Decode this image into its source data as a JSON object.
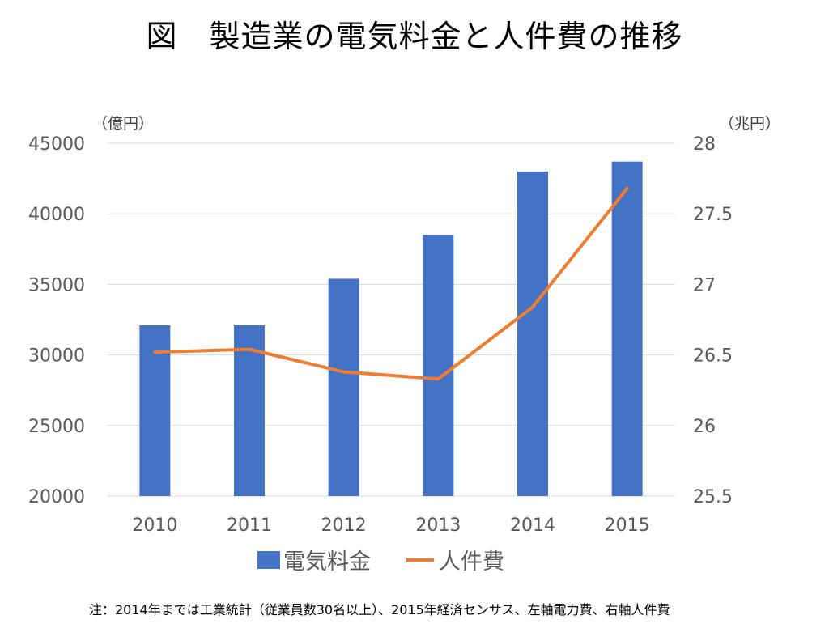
{
  "title": "図　製造業の電気料金と人件費の推移",
  "units": {
    "left": "（億円）",
    "right": "（兆円）"
  },
  "note": "注：2014年までは工業統計（従業員数30名以上）、2015年経済センサス、左軸電力費、右軸人件費",
  "colors": {
    "bar": "#4472C4",
    "line": "#ED7D31",
    "grid": "#D9D9D9",
    "tick": "#595959"
  },
  "chart_data": {
    "type": "bar",
    "title": "図　製造業の電気料金と人件費の推移",
    "categories": [
      "2010",
      "2011",
      "2012",
      "2013",
      "2014",
      "2015"
    ],
    "grid": true,
    "legend_position": "bottom",
    "y_left": {
      "label": "（億円）",
      "range": [
        20000,
        45000
      ],
      "ticks": [
        "20000",
        "25000",
        "30000",
        "35000",
        "40000",
        "45000"
      ]
    },
    "y_right": {
      "label": "（兆円）",
      "range": [
        25.5,
        28
      ],
      "ticks": [
        "25.5",
        "26",
        "26.5",
        "27",
        "27.5",
        "28"
      ]
    },
    "series": [
      {
        "name": "電気料金",
        "type": "bar",
        "axis": "left",
        "values": [
          32100,
          32100,
          35400,
          38500,
          43000,
          43700
        ]
      },
      {
        "name": "人件費",
        "type": "line",
        "axis": "right",
        "values": [
          26.52,
          26.54,
          26.38,
          26.33,
          26.84,
          27.68
        ]
      }
    ]
  }
}
